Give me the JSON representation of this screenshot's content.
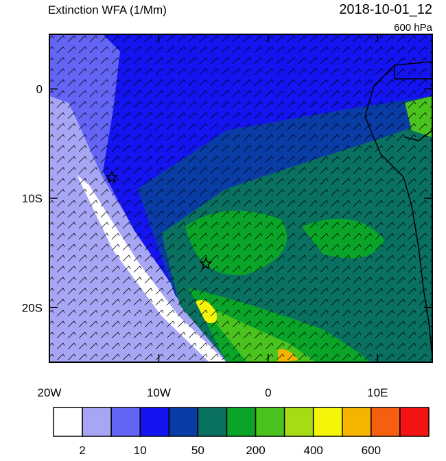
{
  "header": {
    "title": "Extinction WFA (1/Mm)",
    "date": "2018-10-01_12",
    "level": "600 hPa"
  },
  "map": {
    "lonlim": [
      -20,
      15
    ],
    "latlim": [
      -25,
      5
    ],
    "xticks": [
      {
        "value": -20,
        "label": "20W"
      },
      {
        "value": -10,
        "label": "10W"
      },
      0,
      {
        "value": 10,
        "label": "10E"
      }
    ],
    "yticks": [
      0,
      {
        "value": -10,
        "label": "10S"
      },
      {
        "value": -20,
        "label": "20S"
      }
    ],
    "markers": [
      {
        "lon": -14.3,
        "lat": -8.1
      },
      {
        "lon": -5.7,
        "lat": -16.0
      }
    ]
  },
  "colorbar": {
    "colors": [
      "#ffffff",
      "#a6a6f5",
      "#6464f5",
      "#1414f0",
      "#0a3ca5",
      "#0a7060",
      "#0aa528",
      "#4bc31e",
      "#a5dc14",
      "#f5f50a",
      "#f5b400",
      "#f55f0f",
      "#f51414"
    ],
    "levels": [
      2,
      10,
      50,
      200,
      400,
      600
    ]
  }
}
